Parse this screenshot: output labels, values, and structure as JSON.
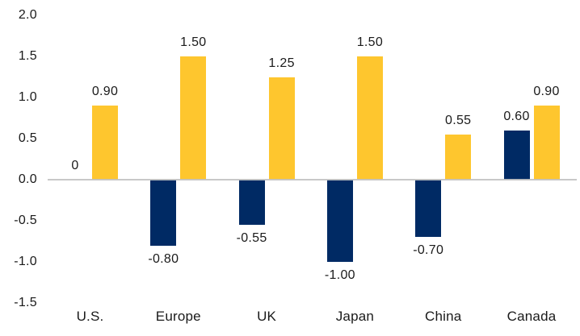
{
  "chart_data": {
    "type": "bar",
    "title": "",
    "xlabel": "",
    "ylabel": "",
    "categories": [
      "U.S.",
      "Europe",
      "UK",
      "Japan",
      "China",
      "Canada"
    ],
    "series": [
      {
        "name": "navy",
        "color": "#002A64",
        "values": [
          0,
          -0.8,
          -0.55,
          -1.0,
          -0.7,
          0.6
        ],
        "labels": [
          "0",
          "-0.80",
          "-0.55",
          "-1.00",
          "-0.70",
          "0.60"
        ]
      },
      {
        "name": "gold",
        "color": "#FEC62E",
        "values": [
          0.9,
          1.5,
          1.25,
          1.5,
          0.55,
          0.9
        ],
        "labels": [
          "0.90",
          "1.50",
          "1.25",
          "1.50",
          "0.55",
          "0.90"
        ]
      }
    ],
    "ytick_labels": [
      "2.0",
      "1.5",
      "1.0",
      "0.5",
      "0.0",
      "-0.5",
      "-1.0",
      "-1.5"
    ],
    "ytick_values": [
      2.0,
      1.5,
      1.0,
      0.5,
      0.0,
      -0.5,
      -1.0,
      -1.5
    ],
    "ylim": [
      -1.5,
      2.0
    ],
    "grid": false,
    "legend": "none",
    "axis_line_color": "#C2C2C2",
    "text_color": "#1A1A1A",
    "background": "#FFFFFF"
  }
}
